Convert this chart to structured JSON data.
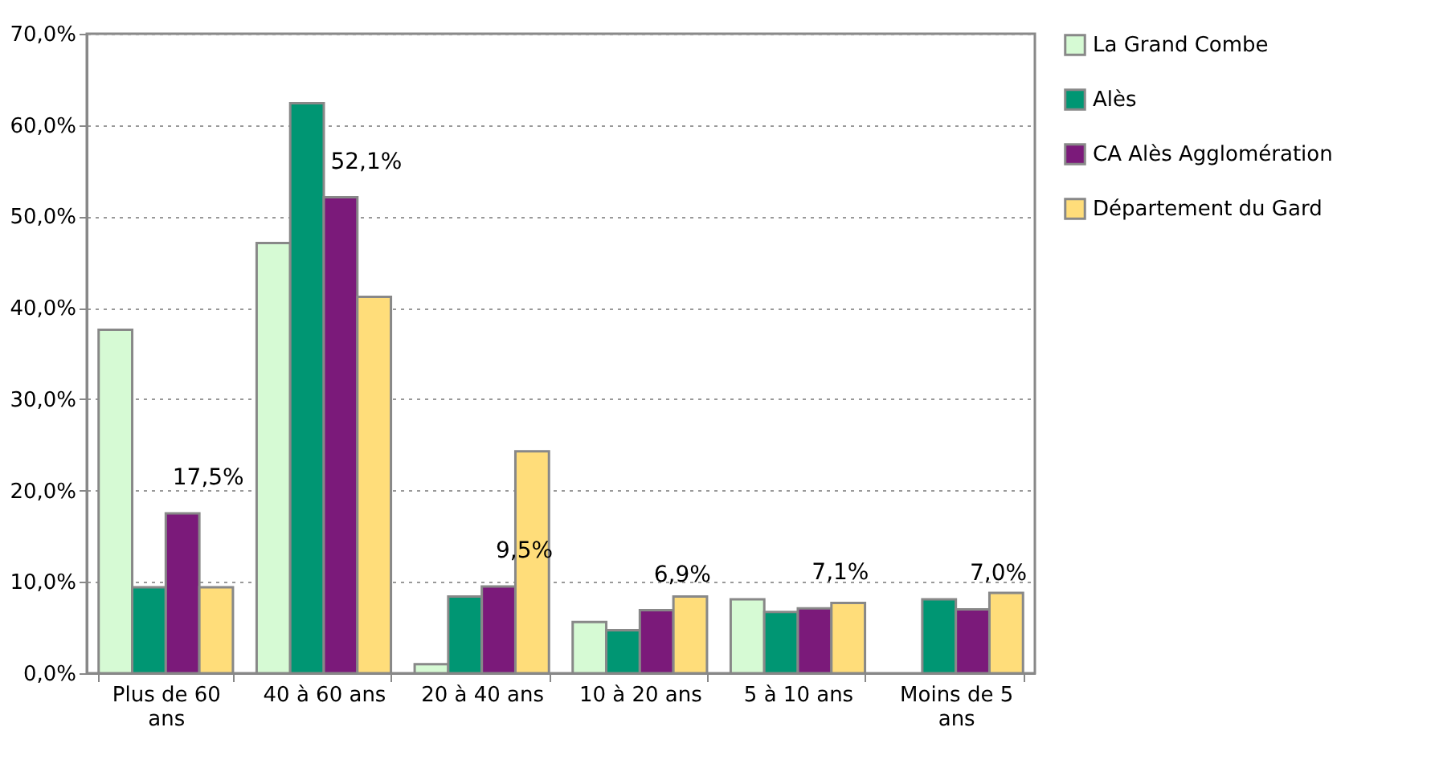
{
  "chart_data": {
    "type": "bar",
    "categories": [
      "Plus de 60 ans",
      "40 à 60 ans",
      "20 à 40 ans",
      "10 à 20 ans",
      "5 à 10 ans",
      "Moins de 5 ans"
    ],
    "series": [
      {
        "name": "La Grand Combe",
        "color": "#d6fad4",
        "values": [
          37.6,
          47.1,
          1.0,
          5.6,
          8.1,
          null
        ]
      },
      {
        "name": "Alès",
        "color": "#009673",
        "values": [
          9.4,
          62.4,
          8.4,
          4.7,
          6.7,
          8.1
        ]
      },
      {
        "name": "CA Alès Agglomération",
        "color": "#7b1a7a",
        "values": [
          17.5,
          52.1,
          9.5,
          6.9,
          7.1,
          7.0
        ],
        "value_labels": [
          "17,5%",
          "52,1%",
          "9,5%",
          "6,9%",
          "7,1%",
          "7,0%"
        ]
      },
      {
        "name": "Département du Gard",
        "color": "#ffdd7a",
        "values": [
          9.4,
          41.2,
          24.3,
          8.4,
          7.7,
          8.8
        ]
      }
    ],
    "ylim": [
      0,
      70
    ],
    "yticks": [
      {
        "value": 0,
        "label": "0,0%"
      },
      {
        "value": 10,
        "label": "10,0%"
      },
      {
        "value": 20,
        "label": "20,0%"
      },
      {
        "value": 30,
        "label": "30,0%"
      },
      {
        "value": 40,
        "label": "40,0%"
      },
      {
        "value": 50,
        "label": "50,0%"
      },
      {
        "value": 60,
        "label": "60,0%"
      },
      {
        "value": 70,
        "label": "70,0%"
      }
    ],
    "grid": "y",
    "legend": "right"
  }
}
